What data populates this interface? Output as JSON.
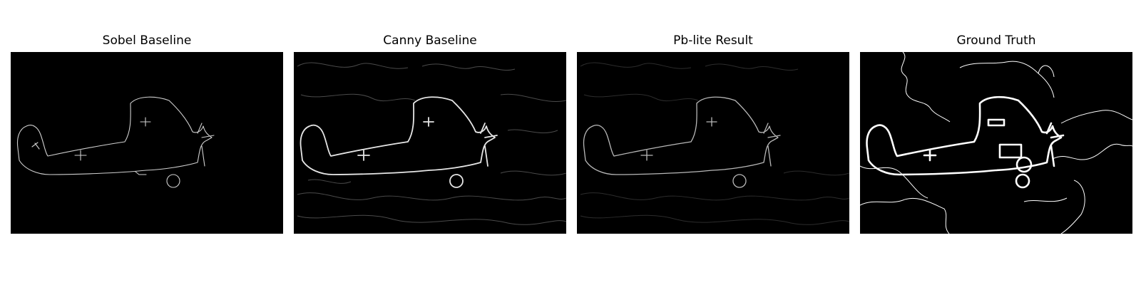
{
  "panels": [
    {
      "title": "Sobel Baseline"
    },
    {
      "title": "Canny Baseline"
    },
    {
      "title": "Pb-lite Result"
    },
    {
      "title": "Ground Truth"
    }
  ]
}
